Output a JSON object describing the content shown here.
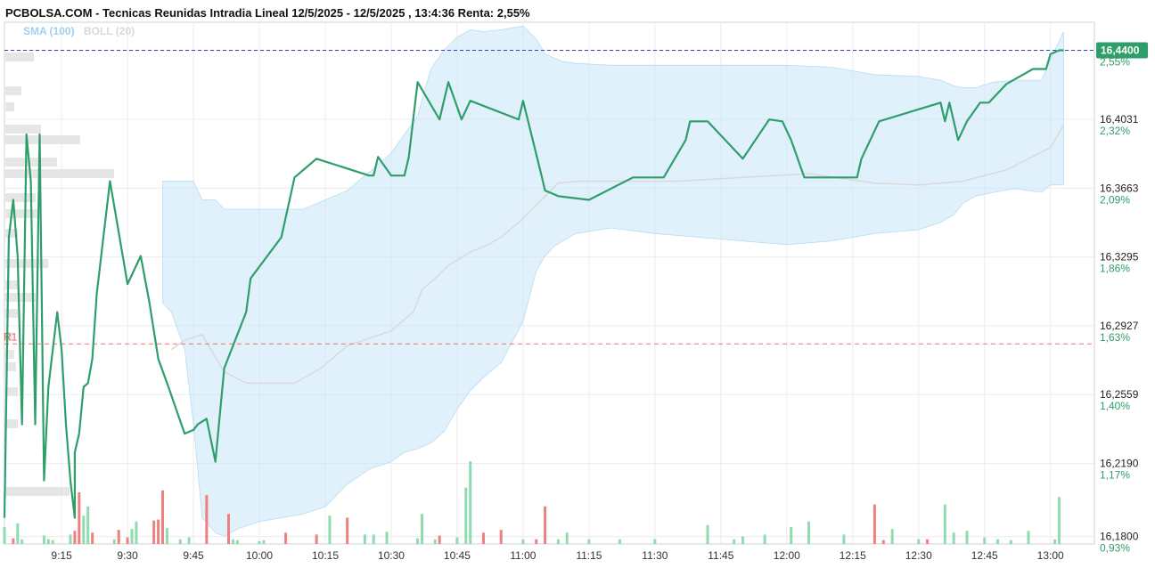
{
  "chart_data": {
    "type": "line",
    "title": "PCBOLSA.COM - Tecnicas Reunidas Intradia Lineal 12/5/2025 - 12/5/2025 , 13:4:36 Renta: 2,55%",
    "legend": [
      {
        "label": "SMA (100)",
        "color": "#9fd0f0"
      },
      {
        "label": "BOLL (20)",
        "color": "#d8d8d8"
      }
    ],
    "x_ticks": [
      "9:15",
      "9:30",
      "9:45",
      "10:00",
      "10:15",
      "10:30",
      "10:45",
      "11:00",
      "11:15",
      "11:30",
      "11:45",
      "12:00",
      "12:15",
      "12:30",
      "12:45",
      "13:00"
    ],
    "x_range": [
      "9:02",
      "13:10"
    ],
    "y_ticks": [
      {
        "value": 16.44,
        "label": "16,4400",
        "pct": "2,55%"
      },
      {
        "value": 16.4031,
        "label": "16,4031",
        "pct": "2,32%"
      },
      {
        "value": 16.3663,
        "label": "16,3663",
        "pct": "2,09%"
      },
      {
        "value": 16.3295,
        "label": "16,3295",
        "pct": "1,86%"
      },
      {
        "value": 16.2927,
        "label": "16,2927",
        "pct": "1,63%"
      },
      {
        "value": 16.2559,
        "label": "16,2559",
        "pct": "1,40%"
      },
      {
        "value": 16.219,
        "label": "16,2190",
        "pct": "1,17%"
      },
      {
        "value": 16.18,
        "label": "16,1800",
        "pct": "0,93%"
      }
    ],
    "ylim": [
      16.176,
      16.455
    ],
    "last_value": {
      "value": 16.44,
      "label": "16,4400"
    },
    "resistance": {
      "label": "R1",
      "value": 16.283
    },
    "price": {
      "name": "Tecnicas Reunidas",
      "x": [
        "9:02",
        "9:03",
        "9:04",
        "9:05",
        "9:06",
        "9:07",
        "9:08",
        "9:09",
        "9:10",
        "9:11",
        "9:12",
        "9:14",
        "9:15",
        "9:16",
        "9:17",
        "9:18",
        "9:18",
        "9:19",
        "9:20",
        "9:21",
        "9:22",
        "9:23",
        "9:26",
        "9:30",
        "9:33",
        "9:35",
        "9:37",
        "9:39",
        "9:43",
        "9:45",
        "9:46",
        "9:48",
        "9:50",
        "9:52",
        "9:57",
        "9:58",
        "10:05",
        "10:08",
        "10:12",
        "10:13",
        "10:25",
        "10:26",
        "10:27",
        "10:30",
        "10:33",
        "10:34",
        "10:36",
        "10:41",
        "10:42",
        "10:43",
        "10:46",
        "10:48",
        "10:59",
        "11:00",
        "11:04",
        "11:05",
        "11:08",
        "11:15",
        "11:25",
        "11:32",
        "11:37",
        "11:38",
        "11:42",
        "11:50",
        "11:56",
        "11:59",
        "12:01",
        "12:04",
        "12:05",
        "12:16",
        "12:17",
        "12:21",
        "12:35",
        "12:36",
        "12:37",
        "12:38",
        "12:39",
        "12:41",
        "12:44",
        "12:46",
        "12:50",
        "12:56",
        "12:59",
        "13:00",
        "13:02",
        "13:03"
      ],
      "y": [
        16.19,
        16.34,
        16.36,
        16.33,
        16.24,
        16.395,
        16.37,
        16.24,
        16.395,
        16.21,
        16.26,
        16.3,
        16.28,
        16.24,
        16.21,
        16.19,
        16.225,
        16.235,
        16.26,
        16.262,
        16.275,
        16.31,
        16.37,
        16.315,
        16.33,
        16.305,
        16.275,
        16.262,
        16.235,
        16.237,
        16.24,
        16.243,
        16.22,
        16.27,
        16.3,
        16.318,
        16.34,
        16.372,
        16.38,
        16.382,
        16.373,
        16.373,
        16.383,
        16.373,
        16.373,
        16.383,
        16.423,
        16.403,
        16.413,
        16.423,
        16.403,
        16.413,
        16.403,
        16.413,
        16.375,
        16.365,
        16.362,
        16.36,
        16.372,
        16.372,
        16.392,
        16.402,
        16.402,
        16.382,
        16.403,
        16.402,
        16.392,
        16.372,
        16.372,
        16.372,
        16.382,
        16.402,
        16.412,
        16.402,
        16.412,
        16.402,
        16.392,
        16.402,
        16.412,
        16.412,
        16.422,
        16.43,
        16.43,
        16.438,
        16.44,
        16.44
      ]
    },
    "boll": {
      "name": "BOLL (20)",
      "x": [
        "9:40",
        "9:43",
        "9:47",
        "9:52",
        "9:57",
        "10:02",
        "10:08",
        "10:14",
        "10:20",
        "10:30",
        "10:35",
        "10:37",
        "10:40",
        "10:43",
        "10:48",
        "10:52",
        "10:55",
        "11:00",
        "11:05",
        "11:08",
        "11:13",
        "11:20",
        "11:35",
        "11:50",
        "12:05",
        "12:20",
        "12:30",
        "12:40",
        "12:50",
        "13:00",
        "13:03"
      ],
      "y": [
        16.28,
        16.285,
        16.288,
        16.268,
        16.262,
        16.262,
        16.262,
        16.27,
        16.282,
        16.29,
        16.3,
        16.312,
        16.318,
        16.325,
        16.332,
        16.336,
        16.34,
        16.35,
        16.362,
        16.369,
        16.37,
        16.37,
        16.37,
        16.372,
        16.374,
        16.369,
        16.368,
        16.37,
        16.376,
        16.388,
        16.4
      ]
    },
    "band": {
      "name": "SMA (100)",
      "x": [
        "9:38",
        "9:40",
        "9:43",
        "9:45",
        "9:47",
        "9:50",
        "9:52",
        "9:55",
        "10:00",
        "10:05",
        "10:10",
        "10:15",
        "10:20",
        "10:25",
        "10:30",
        "10:33",
        "10:36",
        "10:39",
        "10:42",
        "10:45",
        "10:48",
        "10:51",
        "10:55",
        "11:00",
        "11:03",
        "11:05",
        "11:07",
        "11:09",
        "11:12",
        "11:20",
        "11:30",
        "11:50",
        "12:00",
        "12:10",
        "12:20",
        "12:30",
        "12:35",
        "12:38",
        "12:40",
        "12:43",
        "12:47",
        "12:52",
        "12:58",
        "13:00",
        "13:03"
      ],
      "upper": [
        16.37,
        16.37,
        16.37,
        16.37,
        16.36,
        16.36,
        16.355,
        16.355,
        16.355,
        16.355,
        16.355,
        16.36,
        16.365,
        16.375,
        16.385,
        16.395,
        16.405,
        16.43,
        16.44,
        16.447,
        16.451,
        16.45,
        16.451,
        16.453,
        16.446,
        16.438,
        16.436,
        16.434,
        16.433,
        16.432,
        16.432,
        16.432,
        16.432,
        16.431,
        16.427,
        16.426,
        16.424,
        16.421,
        16.42,
        16.42,
        16.423,
        16.424,
        16.424,
        16.435,
        16.45
      ],
      "lower": [
        16.305,
        16.3,
        16.28,
        16.24,
        16.19,
        16.182,
        16.18,
        16.184,
        16.188,
        16.19,
        16.192,
        16.196,
        16.208,
        16.216,
        16.22,
        16.225,
        16.227,
        16.23,
        16.236,
        16.248,
        16.258,
        16.265,
        16.273,
        16.295,
        16.322,
        16.33,
        16.335,
        16.338,
        16.342,
        16.345,
        16.342,
        16.338,
        16.336,
        16.338,
        16.342,
        16.344,
        16.348,
        16.352,
        16.358,
        16.362,
        16.364,
        16.366,
        16.364,
        16.368,
        16.368
      ]
    },
    "volume": {
      "x": [
        "9:02",
        "9:04",
        "9:05",
        "9:06",
        "9:11",
        "9:12",
        "9:13",
        "9:17",
        "9:18",
        "9:19",
        "9:20",
        "9:21",
        "9:22",
        "9:27",
        "9:28",
        "9:30",
        "9:31",
        "9:32",
        "9:36",
        "9:37",
        "9:38",
        "9:39",
        "9:42",
        "9:44",
        "9:48",
        "9:53",
        "9:54",
        "9:55",
        "10:00",
        "10:01",
        "10:06",
        "10:13",
        "10:16",
        "10:20",
        "10:24",
        "10:26",
        "10:29",
        "10:36",
        "10:37",
        "10:40",
        "10:41",
        "10:45",
        "10:47",
        "10:48",
        "10:51",
        "10:55",
        "11:00",
        "11:03",
        "11:05",
        "11:08",
        "11:10",
        "11:15",
        "11:22",
        "11:30",
        "11:42",
        "11:48",
        "11:50",
        "11:55",
        "12:01",
        "12:05",
        "12:13",
        "12:20",
        "12:22",
        "12:24",
        "12:30",
        "12:32",
        "12:36",
        "12:38",
        "12:41",
        "12:45",
        "12:48",
        "12:51",
        "12:55",
        "13:01",
        "13:02"
      ],
      "v": [
        18,
        6,
        22,
        5,
        9,
        5,
        4,
        10,
        14,
        55,
        30,
        40,
        12,
        5,
        15,
        7,
        16,
        24,
        25,
        26,
        57,
        17,
        5,
        7,
        52,
        32,
        5,
        4,
        3,
        4,
        12,
        10,
        30,
        28,
        10,
        10,
        13,
        6,
        32,
        5,
        9,
        7,
        60,
        88,
        12,
        15,
        5,
        5,
        40,
        5,
        12,
        5,
        5,
        5,
        20,
        5,
        8,
        10,
        18,
        24,
        10,
        42,
        4,
        16,
        5,
        5,
        42,
        12,
        14,
        7,
        5,
        4,
        14,
        5,
        50
      ],
      "up": [
        true,
        false,
        true,
        true,
        true,
        true,
        true,
        true,
        false,
        false,
        true,
        true,
        false,
        true,
        false,
        false,
        true,
        true,
        false,
        false,
        false,
        true,
        true,
        true,
        false,
        false,
        true,
        true,
        true,
        true,
        false,
        false,
        true,
        false,
        true,
        true,
        true,
        true,
        true,
        true,
        false,
        true,
        true,
        true,
        false,
        false,
        true,
        false,
        false,
        true,
        true,
        true,
        true,
        true,
        true,
        true,
        true,
        true,
        true,
        true,
        true,
        false,
        false,
        true,
        true,
        false,
        true,
        true,
        true,
        true,
        true,
        true,
        true,
        true,
        true
      ]
    },
    "volume_max": 90,
    "grid": true
  }
}
